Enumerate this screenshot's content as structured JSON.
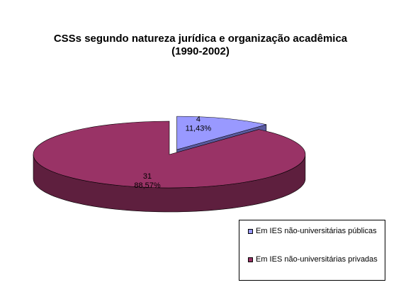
{
  "chart_data": {
    "type": "pie",
    "title": "CSSs segundo natureza jurídica e organização acadêmica (1990-2002)",
    "title_lines": [
      "CSSs segundo natureza jurídica e organização acadêmica",
      "(1990-2002)"
    ],
    "three_d": true,
    "legend_position": "bottom-right",
    "slices": [
      {
        "name": "Em IES não-universitárias públicas",
        "value": 4,
        "value_label": "4",
        "percent": 11.43,
        "percent_label": "11,43%",
        "color": "#9999FF",
        "side_color": "#5A5A9E",
        "exploded": true
      },
      {
        "name": "Em IES não-universitárias privadas",
        "value": 31,
        "value_label": "31",
        "percent": 88.57,
        "percent_label": "88,57%",
        "color": "#993366",
        "side_color": "#5E1F3E",
        "exploded": false
      }
    ]
  }
}
